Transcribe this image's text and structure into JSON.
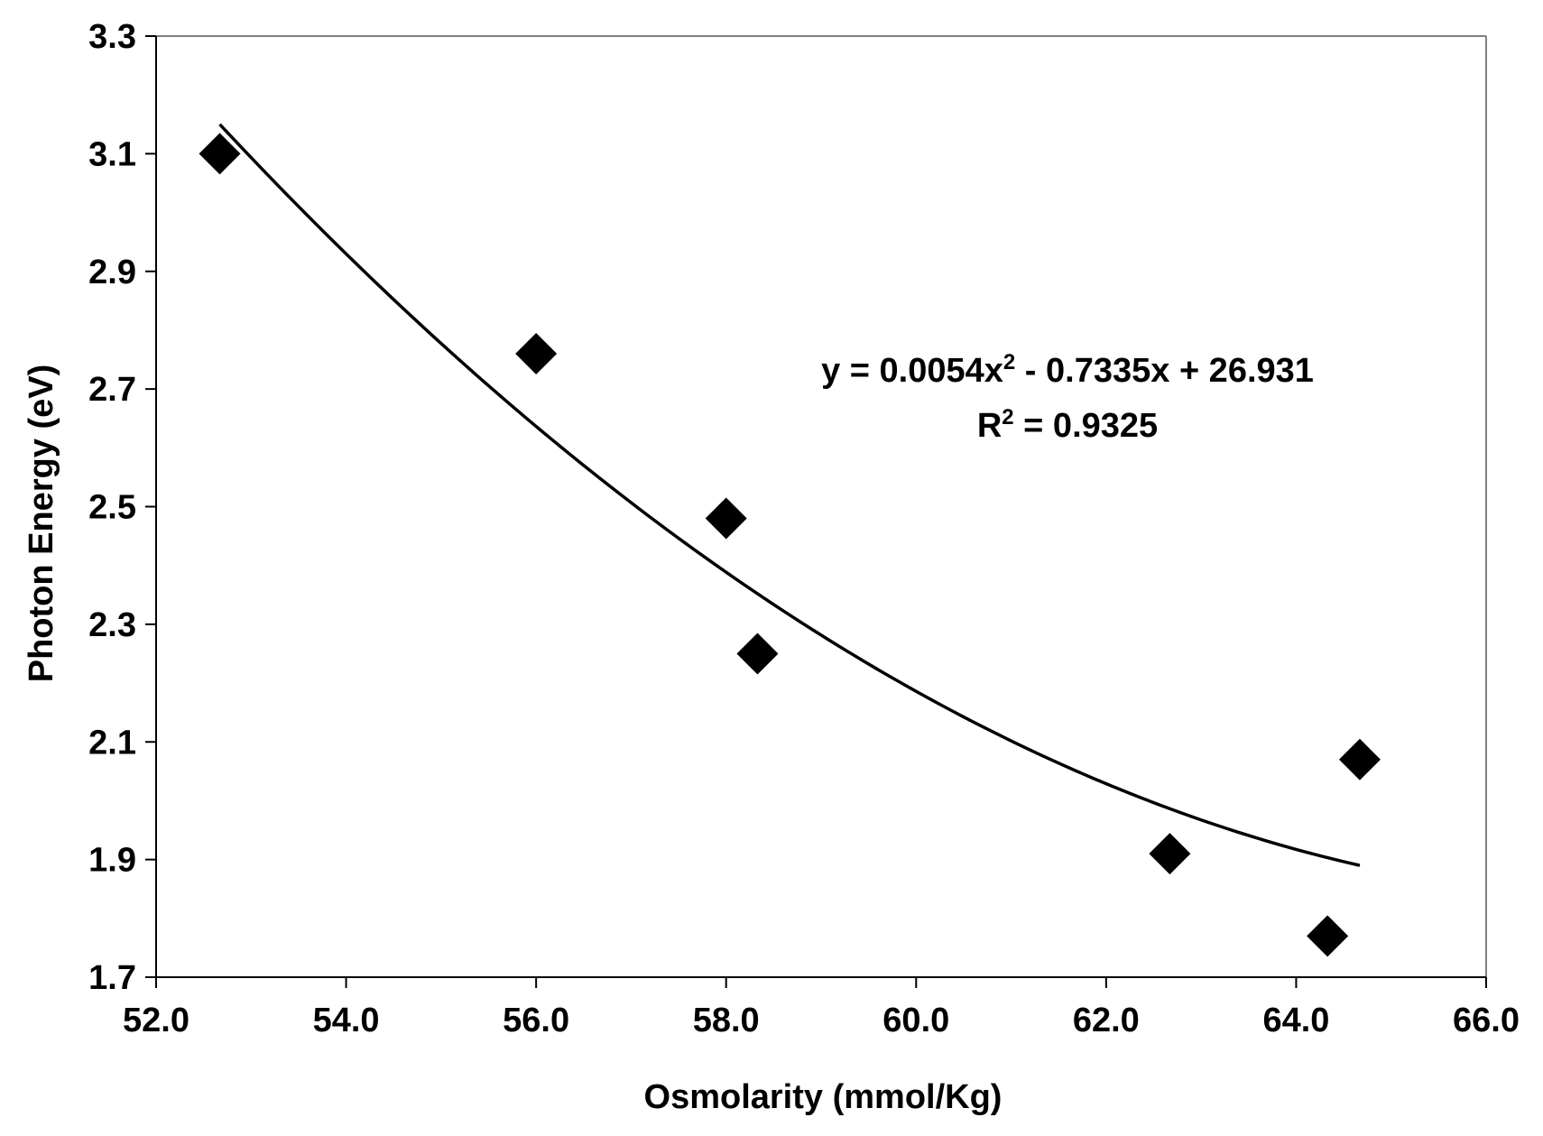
{
  "chart_data": {
    "type": "scatter",
    "title": "",
    "xlabel": "Osmolarity (mmol/Kg)",
    "ylabel": "Photon Energy (eV)",
    "xlim": [
      52.0,
      66.0
    ],
    "ylim": [
      1.7,
      3.3
    ],
    "xticks": [
      52.0,
      54.0,
      56.0,
      58.0,
      60.0,
      62.0,
      64.0,
      66.0
    ],
    "yticks": [
      1.7,
      1.9,
      2.1,
      2.3,
      2.5,
      2.7,
      2.9,
      3.1,
      3.3
    ],
    "xtick_labels": [
      "52.0",
      "54.0",
      "56.0",
      "58.0",
      "60.0",
      "62.0",
      "64.0",
      "66.0"
    ],
    "ytick_labels": [
      "1.7",
      "1.9",
      "2.1",
      "2.3",
      "2.5",
      "2.7",
      "2.9",
      "3.1",
      "3.3"
    ],
    "grid": false,
    "marker": "diamond",
    "colors": {
      "marker": "#000000",
      "line": "#000000",
      "axis": "#000000",
      "frame": "#808080"
    },
    "points": [
      {
        "x": 52.67,
        "y": 3.1
      },
      {
        "x": 56.0,
        "y": 2.76
      },
      {
        "x": 58.0,
        "y": 2.48
      },
      {
        "x": 58.33,
        "y": 2.25
      },
      {
        "x": 62.67,
        "y": 1.91
      },
      {
        "x": 64.33,
        "y": 1.77
      },
      {
        "x": 64.67,
        "y": 2.07
      }
    ],
    "trendline": {
      "type": "polynomial",
      "order": 2,
      "x_range": [
        52.67,
        64.67
      ],
      "fitted_endpoints": [
        {
          "x": 52.67,
          "y": 3.15
        },
        {
          "x": 64.67,
          "y": 1.89
        }
      ]
    },
    "annotation": {
      "equation_prefix": "y = 0.0054x",
      "equation_exp": "2",
      "equation_suffix": " - 0.7335x + 26.931",
      "r2_prefix": "R",
      "r2_exp": "2",
      "r2_suffix": " = 0.9325"
    }
  }
}
